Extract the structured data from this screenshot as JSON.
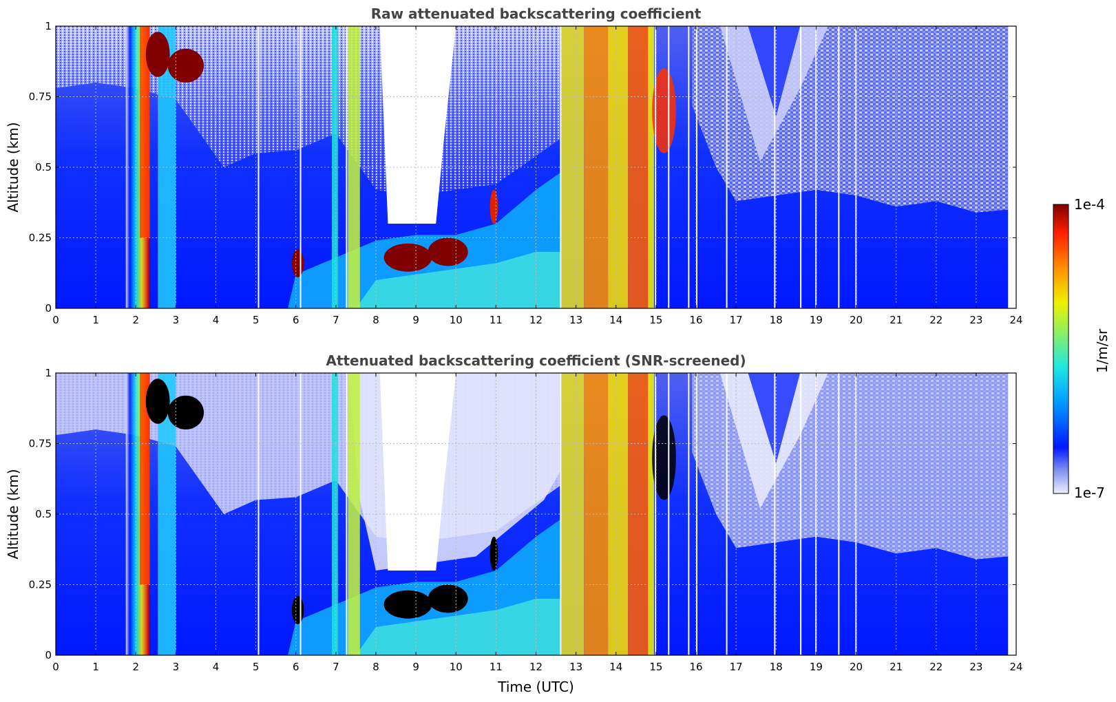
{
  "chart_data": [
    {
      "type": "heatmap",
      "title": "Raw attenuated backscattering coefficient",
      "xlabel": "",
      "ylabel": "Altitude (km)",
      "xlim": [
        0,
        24
      ],
      "ylim": [
        0,
        1
      ],
      "x_ticks": [
        "0",
        "1",
        "2",
        "3",
        "4",
        "5",
        "6",
        "7",
        "8",
        "9",
        "10",
        "11",
        "12",
        "13",
        "14",
        "15",
        "16",
        "17",
        "18",
        "19",
        "20",
        "21",
        "22",
        "23",
        "24"
      ],
      "y_ticks": [
        "0",
        "0.25",
        "0.5",
        "0.75",
        "1"
      ],
      "grid": true,
      "screened": false
    },
    {
      "type": "heatmap",
      "title": "Attenuated backscattering coefficient (SNR-screened)",
      "xlabel": "Time (UTC)",
      "ylabel": "Altitude (km)",
      "xlim": [
        0,
        24
      ],
      "ylim": [
        0,
        1
      ],
      "x_ticks": [
        "0",
        "1",
        "2",
        "3",
        "4",
        "5",
        "6",
        "7",
        "8",
        "9",
        "10",
        "11",
        "12",
        "13",
        "14",
        "15",
        "16",
        "17",
        "18",
        "19",
        "20",
        "21",
        "22",
        "23",
        "24"
      ],
      "y_ticks": [
        "0",
        "0.25",
        "0.5",
        "0.75",
        "1"
      ],
      "grid": true,
      "screened": true
    }
  ],
  "colorbar": {
    "label": "1/m/sr",
    "min_label": "1e-7",
    "max_label": "1e-4",
    "scale": "log",
    "colormap": "jet"
  },
  "colors": {
    "title": "#444444",
    "grid": "#bbbbbb",
    "low": "#eeeeff",
    "mid": "#0018ff",
    "high": "#800000"
  }
}
